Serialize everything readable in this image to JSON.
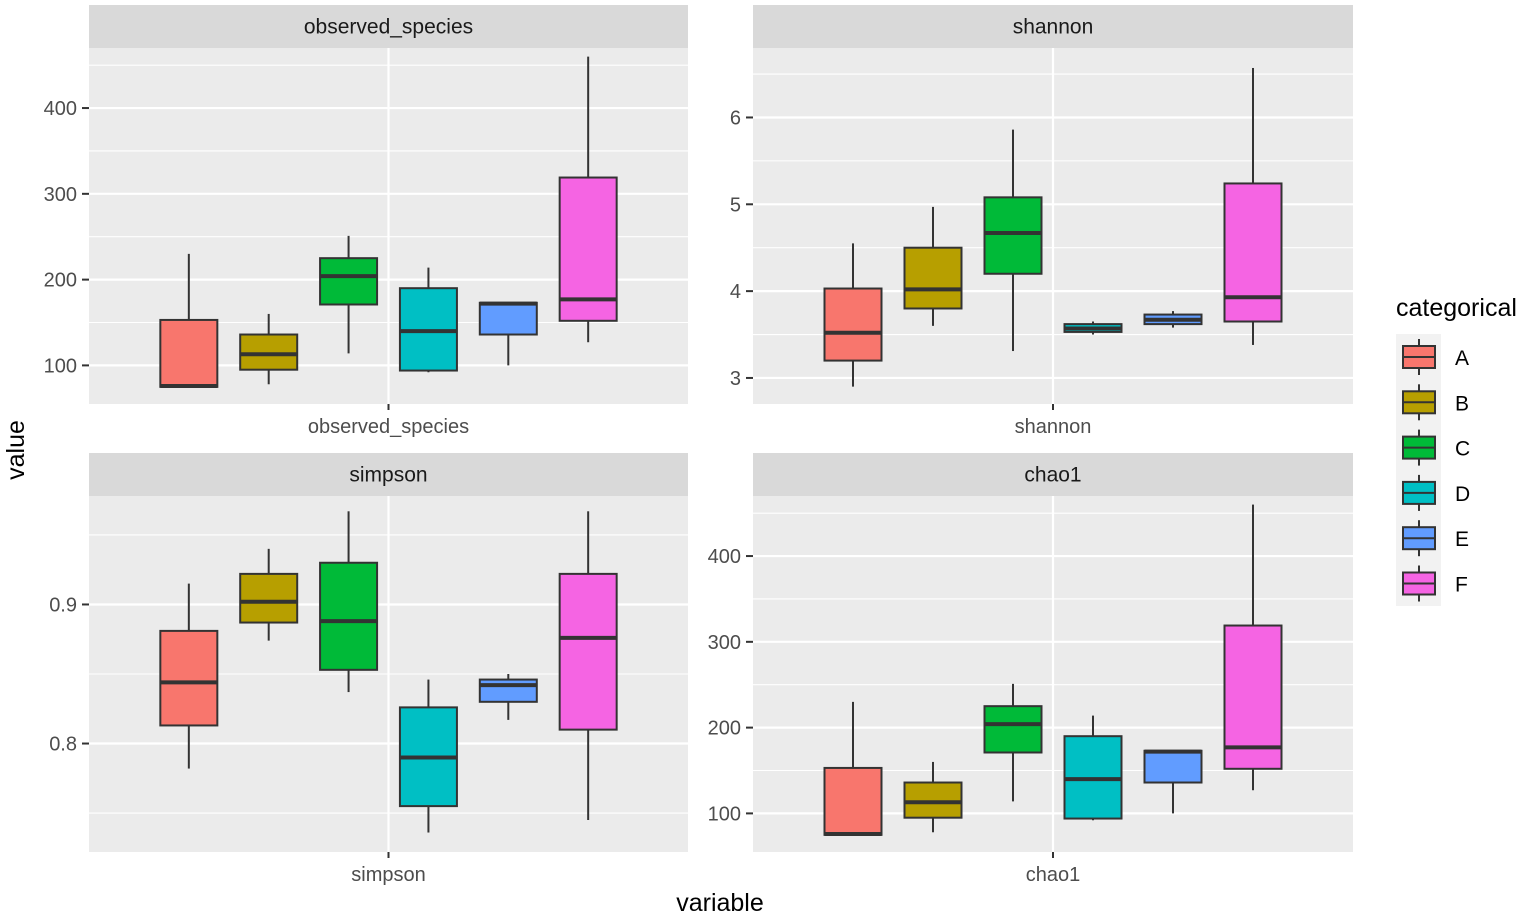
{
  "chart_data": {
    "type": "boxplot",
    "xlabel": "variable",
    "ylabel": "value",
    "legend": {
      "title": "categorical",
      "position": "right",
      "categories": [
        "A",
        "B",
        "C",
        "D",
        "E",
        "F"
      ]
    },
    "colors": {
      "A": "#F8766D",
      "B": "#B79F00",
      "C": "#00BA38",
      "D": "#00BFC4",
      "E": "#619CFF",
      "F": "#F564E3",
      "panel_bg": "#EBEBEB",
      "strip_bg": "#D9D9D9",
      "gridline": "#FFFFFF",
      "outline": "#333333"
    },
    "panels": [
      {
        "strip": "observed_species",
        "x_tick": "observed_species",
        "ylim": [
          55,
          470
        ],
        "y_ticks": [
          100,
          200,
          300,
          400
        ],
        "y_tick_labels": [
          "100",
          "200",
          "300",
          "400"
        ],
        "boxes": [
          {
            "category": "A",
            "min": 75,
            "q1": 75,
            "median": 76,
            "q3": 153,
            "max": 230
          },
          {
            "category": "B",
            "min": 78,
            "q1": 95,
            "median": 113,
            "q3": 136,
            "max": 160
          },
          {
            "category": "C",
            "min": 114,
            "q1": 171,
            "median": 204,
            "q3": 225,
            "max": 251
          },
          {
            "category": "D",
            "min": 92,
            "q1": 94,
            "median": 140,
            "q3": 190,
            "max": 214
          },
          {
            "category": "E",
            "min": 100,
            "q1": 136,
            "median": 172,
            "q3": 173,
            "max": 173
          },
          {
            "category": "F",
            "min": 127,
            "q1": 152,
            "median": 177,
            "q3": 319,
            "max": 460
          }
        ]
      },
      {
        "strip": "shannon",
        "x_tick": "shannon",
        "ylim": [
          2.7,
          6.8
        ],
        "y_ticks": [
          3,
          4,
          5,
          6
        ],
        "y_tick_labels": [
          "3",
          "4",
          "5",
          "6"
        ],
        "boxes": [
          {
            "category": "A",
            "min": 2.9,
            "q1": 3.2,
            "median": 3.52,
            "q3": 4.03,
            "max": 4.55
          },
          {
            "category": "B",
            "min": 3.6,
            "q1": 3.8,
            "median": 4.02,
            "q3": 4.5,
            "max": 4.97
          },
          {
            "category": "C",
            "min": 3.31,
            "q1": 4.2,
            "median": 4.67,
            "q3": 5.08,
            "max": 5.86
          },
          {
            "category": "D",
            "min": 3.5,
            "q1": 3.53,
            "median": 3.57,
            "q3": 3.62,
            "max": 3.65
          },
          {
            "category": "E",
            "min": 3.58,
            "q1": 3.62,
            "median": 3.67,
            "q3": 3.73,
            "max": 3.77
          },
          {
            "category": "F",
            "min": 3.38,
            "q1": 3.65,
            "median": 3.93,
            "q3": 5.24,
            "max": 6.57
          }
        ]
      },
      {
        "strip": "simpson",
        "x_tick": "simpson",
        "ylim": [
          0.722,
          0.978
        ],
        "y_ticks": [
          0.8,
          0.9
        ],
        "y_tick_labels": [
          "0.8",
          "0.9"
        ],
        "boxes": [
          {
            "category": "A",
            "min": 0.782,
            "q1": 0.813,
            "median": 0.844,
            "q3": 0.881,
            "max": 0.915
          },
          {
            "category": "B",
            "min": 0.874,
            "q1": 0.887,
            "median": 0.902,
            "q3": 0.922,
            "max": 0.94
          },
          {
            "category": "C",
            "min": 0.837,
            "q1": 0.853,
            "median": 0.888,
            "q3": 0.93,
            "max": 0.967
          },
          {
            "category": "D",
            "min": 0.736,
            "q1": 0.755,
            "median": 0.79,
            "q3": 0.826,
            "max": 0.846
          },
          {
            "category": "E",
            "min": 0.817,
            "q1": 0.83,
            "median": 0.842,
            "q3": 0.846,
            "max": 0.85
          },
          {
            "category": "F",
            "min": 0.745,
            "q1": 0.81,
            "median": 0.876,
            "q3": 0.922,
            "max": 0.967
          }
        ]
      },
      {
        "strip": "chao1",
        "x_tick": "chao1",
        "ylim": [
          55,
          470
        ],
        "y_ticks": [
          100,
          200,
          300,
          400
        ],
        "y_tick_labels": [
          "100",
          "200",
          "300",
          "400"
        ],
        "boxes": [
          {
            "category": "A",
            "min": 75,
            "q1": 75,
            "median": 76,
            "q3": 153,
            "max": 230
          },
          {
            "category": "B",
            "min": 78,
            "q1": 95,
            "median": 113,
            "q3": 136,
            "max": 160
          },
          {
            "category": "C",
            "min": 114,
            "q1": 171,
            "median": 204,
            "q3": 225,
            "max": 251
          },
          {
            "category": "D",
            "min": 92,
            "q1": 94,
            "median": 140,
            "q3": 190,
            "max": 214
          },
          {
            "category": "E",
            "min": 100,
            "q1": 136,
            "median": 172,
            "q3": 173,
            "max": 173
          },
          {
            "category": "F",
            "min": 127,
            "q1": 152,
            "median": 177,
            "q3": 319,
            "max": 460
          }
        ]
      }
    ]
  }
}
